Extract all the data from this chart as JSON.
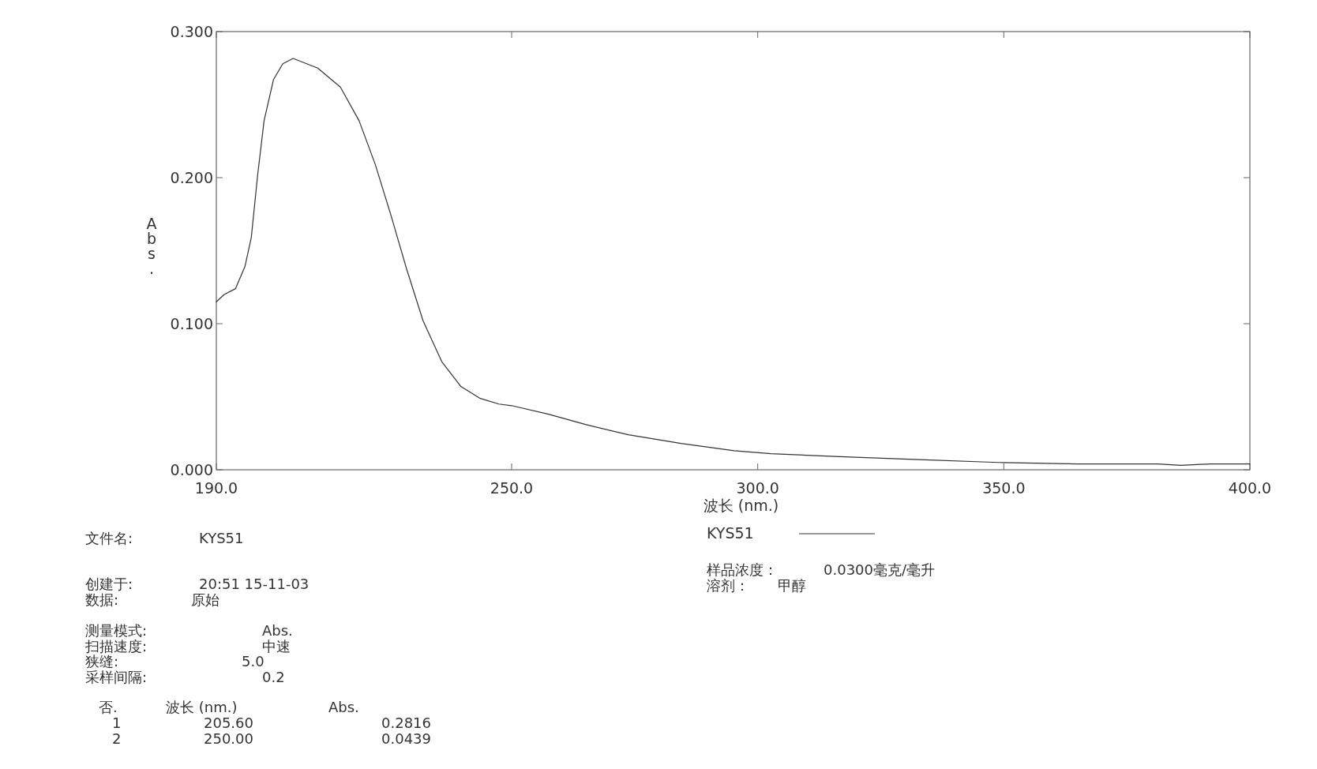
{
  "chart_data": {
    "type": "line",
    "xlabel": "波长 (nm.)",
    "ylabel": "Abs.",
    "xlim": [
      190,
      400
    ],
    "ylim": [
      0,
      0.3
    ],
    "xticks": [
      {
        "value": 190,
        "label": "190.0"
      },
      {
        "value": 250,
        "label": "250.0"
      },
      {
        "value": 300,
        "label": "300.0"
      },
      {
        "value": 350,
        "label": "350.0"
      },
      {
        "value": 400,
        "label": "400.0"
      }
    ],
    "yticks": [
      {
        "value": 0,
        "label": "0.000"
      },
      {
        "value": 0.1,
        "label": "0.100"
      },
      {
        "value": 0.2,
        "label": "0.200"
      },
      {
        "value": 0.3,
        "label": "0.300"
      }
    ],
    "grid": false,
    "legend": "bottom right",
    "line_style": "solid",
    "series": [
      {
        "name": "KYS51",
        "color": "#333333",
        "x": [
          190,
          191.6,
          193.9,
          195.8,
          197.1,
          198.4,
          199.7,
          201.6,
          203.5,
          205.6,
          210.6,
          215.2,
          219,
          222.3,
          225.5,
          228.7,
          232,
          235.8,
          239.7,
          243.5,
          247.4,
          250,
          257.5,
          265,
          273.7,
          284.4,
          295.2,
          302.7,
          316.7,
          332.8,
          348.9,
          365,
          381.2,
          386,
          392,
          400
        ],
        "values": [
          0.115,
          0.12,
          0.124,
          0.139,
          0.159,
          0.202,
          0.239,
          0.267,
          0.278,
          0.2816,
          0.275,
          0.262,
          0.239,
          0.209,
          0.174,
          0.137,
          0.102,
          0.074,
          0.057,
          0.049,
          0.045,
          0.0439,
          0.038,
          0.031,
          0.024,
          0.018,
          0.013,
          0.011,
          0.009,
          0.007,
          0.005,
          0.004,
          0.004,
          0.003,
          0.004,
          0.004
        ]
      }
    ],
    "annotations": [
      "文件名:\tKYS51",
      "创建于:\t20:51   15-11-03",
      "数据:\t原始",
      "测量模式:\tAbs.",
      "扫描速度:\t中速",
      "狭缝:\t5.0",
      "采样间隔:\t0.2",
      "否.\t波长 (nm.)\tAbs.",
      "1\t205.60\t0.2816",
      "2\t250.00\t0.0439",
      "样品浓度：\t0.0300毫克/毫升",
      "溶剂：\t甲醇"
    ]
  }
}
